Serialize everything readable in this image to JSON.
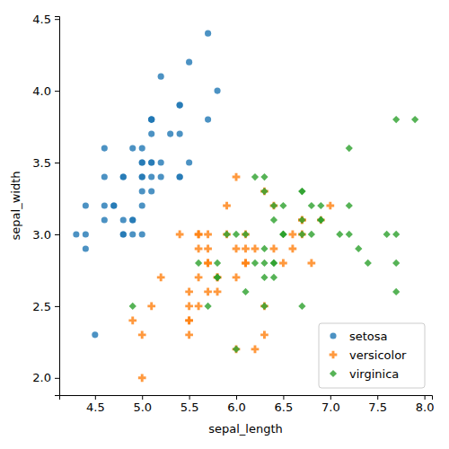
{
  "chart_data": {
    "type": "scatter",
    "x_label": "sepal_length",
    "y_label": "sepal_width",
    "xlim": [
      4.12,
      8.08
    ],
    "ylim": [
      1.88,
      4.52
    ],
    "xticks": [
      {
        "value": 4.5,
        "label": "4.5"
      },
      {
        "value": 5.0,
        "label": "5.0"
      },
      {
        "value": 5.5,
        "label": "5.5"
      },
      {
        "value": 6.0,
        "label": "6.0"
      },
      {
        "value": 6.5,
        "label": "6.5"
      },
      {
        "value": 7.0,
        "label": "7.0"
      },
      {
        "value": 7.5,
        "label": "7.5"
      },
      {
        "value": 8.0,
        "label": "8.0"
      }
    ],
    "yticks": [
      {
        "value": 2.0,
        "label": "2.0"
      },
      {
        "value": 2.5,
        "label": "2.5"
      },
      {
        "value": 3.0,
        "label": "3.0"
      },
      {
        "value": 3.5,
        "label": "3.5"
      },
      {
        "value": 4.0,
        "label": "4.0"
      },
      {
        "value": 4.5,
        "label": "4.5"
      }
    ],
    "legend": "lower right",
    "series": [
      {
        "name": "setosa",
        "color": "#1f77b4",
        "marker": "circle",
        "x": [
          5.1,
          4.9,
          4.7,
          4.6,
          5.0,
          5.4,
          4.6,
          5.0,
          4.4,
          4.9,
          5.4,
          4.8,
          4.8,
          4.3,
          5.8,
          5.7,
          5.4,
          5.1,
          5.7,
          5.1,
          5.4,
          5.1,
          4.6,
          5.1,
          4.8,
          5.0,
          5.0,
          5.2,
          5.2,
          4.7,
          4.8,
          5.4,
          5.2,
          5.5,
          4.9,
          5.0,
          5.5,
          4.9,
          4.4,
          5.1,
          5.0,
          4.5,
          4.4,
          5.0,
          5.1,
          4.8,
          5.1,
          4.6,
          5.3,
          5.0
        ],
        "values": [
          3.5,
          3.0,
          3.2,
          3.1,
          3.6,
          3.9,
          3.4,
          3.4,
          2.9,
          3.1,
          3.7,
          3.4,
          3.0,
          3.0,
          4.0,
          4.4,
          3.9,
          3.5,
          3.8,
          3.8,
          3.4,
          3.7,
          3.6,
          3.3,
          3.4,
          3.0,
          3.4,
          3.5,
          3.4,
          3.2,
          3.1,
          3.4,
          4.1,
          4.2,
          3.1,
          3.2,
          3.5,
          3.6,
          3.0,
          3.4,
          3.5,
          2.3,
          3.2,
          3.5,
          3.8,
          3.0,
          3.8,
          3.2,
          3.7,
          3.3
        ]
      },
      {
        "name": "versicolor",
        "color": "#ff7f0e",
        "marker": "plus",
        "x": [
          7.0,
          6.4,
          6.9,
          5.5,
          6.5,
          5.7,
          6.3,
          4.9,
          6.6,
          5.2,
          5.0,
          5.9,
          6.0,
          6.1,
          5.6,
          6.7,
          5.6,
          5.8,
          6.2,
          5.6,
          5.9,
          6.1,
          6.3,
          6.1,
          6.4,
          6.6,
          6.8,
          6.7,
          6.0,
          5.7,
          5.5,
          5.5,
          5.8,
          6.0,
          5.4,
          6.0,
          6.7,
          6.3,
          5.6,
          5.5,
          5.5,
          6.1,
          5.8,
          5.0,
          5.6,
          5.7,
          5.7,
          6.2,
          5.1,
          5.7
        ],
        "values": [
          3.2,
          3.2,
          3.1,
          2.3,
          2.8,
          2.8,
          3.3,
          2.4,
          2.9,
          2.7,
          2.0,
          3.0,
          2.2,
          2.9,
          2.9,
          3.1,
          3.0,
          2.7,
          2.2,
          2.5,
          3.2,
          2.8,
          2.5,
          2.8,
          2.9,
          3.0,
          2.8,
          3.0,
          2.9,
          2.6,
          2.4,
          2.4,
          2.7,
          2.7,
          3.0,
          3.4,
          3.1,
          2.3,
          3.0,
          2.5,
          2.6,
          3.0,
          2.6,
          2.3,
          2.7,
          3.0,
          2.9,
          2.9,
          2.5,
          2.8
        ]
      },
      {
        "name": "virginica",
        "color": "#2ca02c",
        "marker": "diamond",
        "x": [
          6.3,
          5.8,
          7.1,
          6.3,
          6.5,
          7.6,
          4.9,
          7.3,
          6.7,
          7.2,
          6.5,
          6.4,
          6.8,
          5.7,
          5.8,
          6.4,
          6.5,
          7.7,
          7.7,
          6.0,
          6.9,
          5.6,
          7.7,
          6.3,
          6.7,
          7.2,
          6.2,
          6.1,
          6.4,
          7.2,
          7.4,
          7.9,
          6.4,
          6.3,
          6.1,
          7.7,
          6.3,
          6.4,
          6.0,
          6.9,
          6.7,
          6.9,
          5.8,
          6.8,
          6.7,
          6.7,
          6.3,
          6.5,
          6.2,
          5.9
        ],
        "values": [
          3.3,
          2.7,
          3.0,
          2.9,
          3.0,
          3.0,
          2.5,
          2.9,
          2.5,
          3.6,
          3.2,
          2.7,
          3.0,
          2.5,
          2.8,
          3.2,
          3.0,
          3.8,
          2.6,
          2.2,
          3.2,
          2.8,
          2.8,
          2.7,
          3.3,
          3.2,
          2.8,
          3.0,
          2.8,
          3.0,
          2.8,
          3.8,
          2.8,
          2.8,
          2.6,
          3.0,
          3.4,
          3.1,
          3.0,
          3.1,
          3.1,
          3.1,
          2.7,
          3.2,
          3.3,
          3.0,
          2.5,
          3.0,
          3.4,
          3.0
        ]
      }
    ]
  }
}
